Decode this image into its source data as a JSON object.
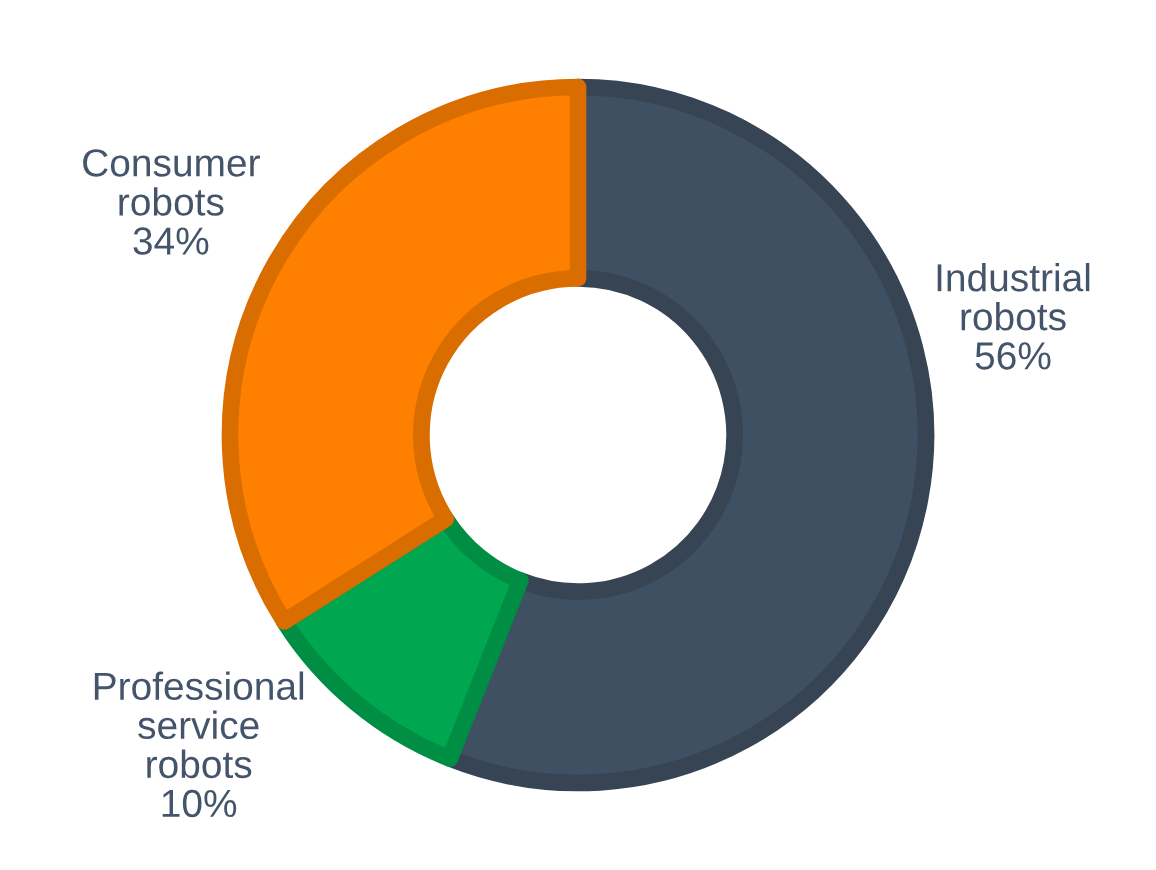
{
  "chart_data": {
    "type": "donut",
    "categories": [
      "Industrial\nrobots",
      "Professional\nservice\nrobots",
      "Consumer\nrobots"
    ],
    "values": [
      56,
      10,
      34
    ],
    "value_labels": [
      "56%",
      "10%",
      "34%"
    ],
    "colors": [
      "#3f5063",
      "#00a650",
      "#ff8000"
    ],
    "legend": false
  }
}
